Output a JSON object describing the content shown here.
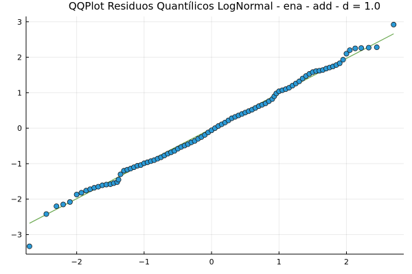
{
  "chart_data": {
    "type": "scatter",
    "title": "QQPlot Residuos Quantílicos LogNormal - ena - add - d = 1.0",
    "xlabel": "",
    "ylabel": "",
    "xlim": [
      -2.75,
      2.85
    ],
    "ylim": [
      -3.55,
      3.15
    ],
    "x_ticks": [
      -2,
      -1,
      0,
      1,
      2
    ],
    "y_ticks": [
      -3,
      -2,
      -1,
      0,
      1,
      2,
      3
    ],
    "x_tick_labels": [
      "−2",
      "−1",
      "0",
      "1",
      "2"
    ],
    "y_tick_labels": [
      "−3",
      "−2",
      "−1",
      "0",
      "1",
      "2",
      "3"
    ],
    "grid": true,
    "legend": "none",
    "reference_line": {
      "x": [
        -2.7,
        2.7
      ],
      "y": [
        -2.68,
        2.66
      ],
      "color": "#6aa84f"
    },
    "series": [
      {
        "marker_color": "#2b9bd8",
        "marker_edge": "#1a1a1a",
        "points": [
          [
            -2.7,
            -3.33
          ],
          [
            -2.45,
            -2.42
          ],
          [
            -2.3,
            -2.2
          ],
          [
            -2.2,
            -2.15
          ],
          [
            -2.1,
            -2.08
          ],
          [
            -2.0,
            -1.87
          ],
          [
            -1.93,
            -1.82
          ],
          [
            -1.86,
            -1.76
          ],
          [
            -1.8,
            -1.72
          ],
          [
            -1.74,
            -1.68
          ],
          [
            -1.68,
            -1.65
          ],
          [
            -1.62,
            -1.61
          ],
          [
            -1.56,
            -1.59
          ],
          [
            -1.5,
            -1.58
          ],
          [
            -1.45,
            -1.55
          ],
          [
            -1.4,
            -1.52
          ],
          [
            -1.38,
            -1.45
          ],
          [
            -1.35,
            -1.3
          ],
          [
            -1.3,
            -1.2
          ],
          [
            -1.25,
            -1.17
          ],
          [
            -1.2,
            -1.14
          ],
          [
            -1.15,
            -1.1
          ],
          [
            -1.1,
            -1.06
          ],
          [
            -1.05,
            -1.04
          ],
          [
            -1.0,
            -0.99
          ],
          [
            -0.95,
            -0.96
          ],
          [
            -0.9,
            -0.93
          ],
          [
            -0.85,
            -0.9
          ],
          [
            -0.8,
            -0.86
          ],
          [
            -0.75,
            -0.82
          ],
          [
            -0.7,
            -0.77
          ],
          [
            -0.65,
            -0.72
          ],
          [
            -0.6,
            -0.68
          ],
          [
            -0.55,
            -0.64
          ],
          [
            -0.5,
            -0.58
          ],
          [
            -0.45,
            -0.53
          ],
          [
            -0.4,
            -0.49
          ],
          [
            -0.35,
            -0.45
          ],
          [
            -0.3,
            -0.4
          ],
          [
            -0.25,
            -0.36
          ],
          [
            -0.2,
            -0.3
          ],
          [
            -0.15,
            -0.25
          ],
          [
            -0.1,
            -0.19
          ],
          [
            -0.05,
            -0.12
          ],
          [
            0.0,
            -0.06
          ],
          [
            0.05,
            0.0
          ],
          [
            0.1,
            0.06
          ],
          [
            0.15,
            0.11
          ],
          [
            0.2,
            0.16
          ],
          [
            0.25,
            0.22
          ],
          [
            0.3,
            0.28
          ],
          [
            0.35,
            0.32
          ],
          [
            0.4,
            0.36
          ],
          [
            0.45,
            0.4
          ],
          [
            0.5,
            0.44
          ],
          [
            0.55,
            0.48
          ],
          [
            0.6,
            0.52
          ],
          [
            0.65,
            0.57
          ],
          [
            0.7,
            0.62
          ],
          [
            0.75,
            0.66
          ],
          [
            0.8,
            0.7
          ],
          [
            0.85,
            0.76
          ],
          [
            0.9,
            0.82
          ],
          [
            0.93,
            0.9
          ],
          [
            0.96,
            0.98
          ],
          [
            1.0,
            1.04
          ],
          [
            1.05,
            1.07
          ],
          [
            1.1,
            1.1
          ],
          [
            1.15,
            1.14
          ],
          [
            1.2,
            1.2
          ],
          [
            1.25,
            1.26
          ],
          [
            1.3,
            1.32
          ],
          [
            1.35,
            1.4
          ],
          [
            1.4,
            1.47
          ],
          [
            1.45,
            1.53
          ],
          [
            1.5,
            1.58
          ],
          [
            1.55,
            1.61
          ],
          [
            1.6,
            1.62
          ],
          [
            1.65,
            1.64
          ],
          [
            1.7,
            1.68
          ],
          [
            1.75,
            1.71
          ],
          [
            1.8,
            1.74
          ],
          [
            1.85,
            1.78
          ],
          [
            1.9,
            1.83
          ],
          [
            1.95,
            1.93
          ],
          [
            2.0,
            2.1
          ],
          [
            2.05,
            2.2
          ],
          [
            2.13,
            2.25
          ],
          [
            2.22,
            2.26
          ],
          [
            2.33,
            2.27
          ],
          [
            2.45,
            2.28
          ],
          [
            2.7,
            2.92
          ]
        ]
      }
    ]
  }
}
